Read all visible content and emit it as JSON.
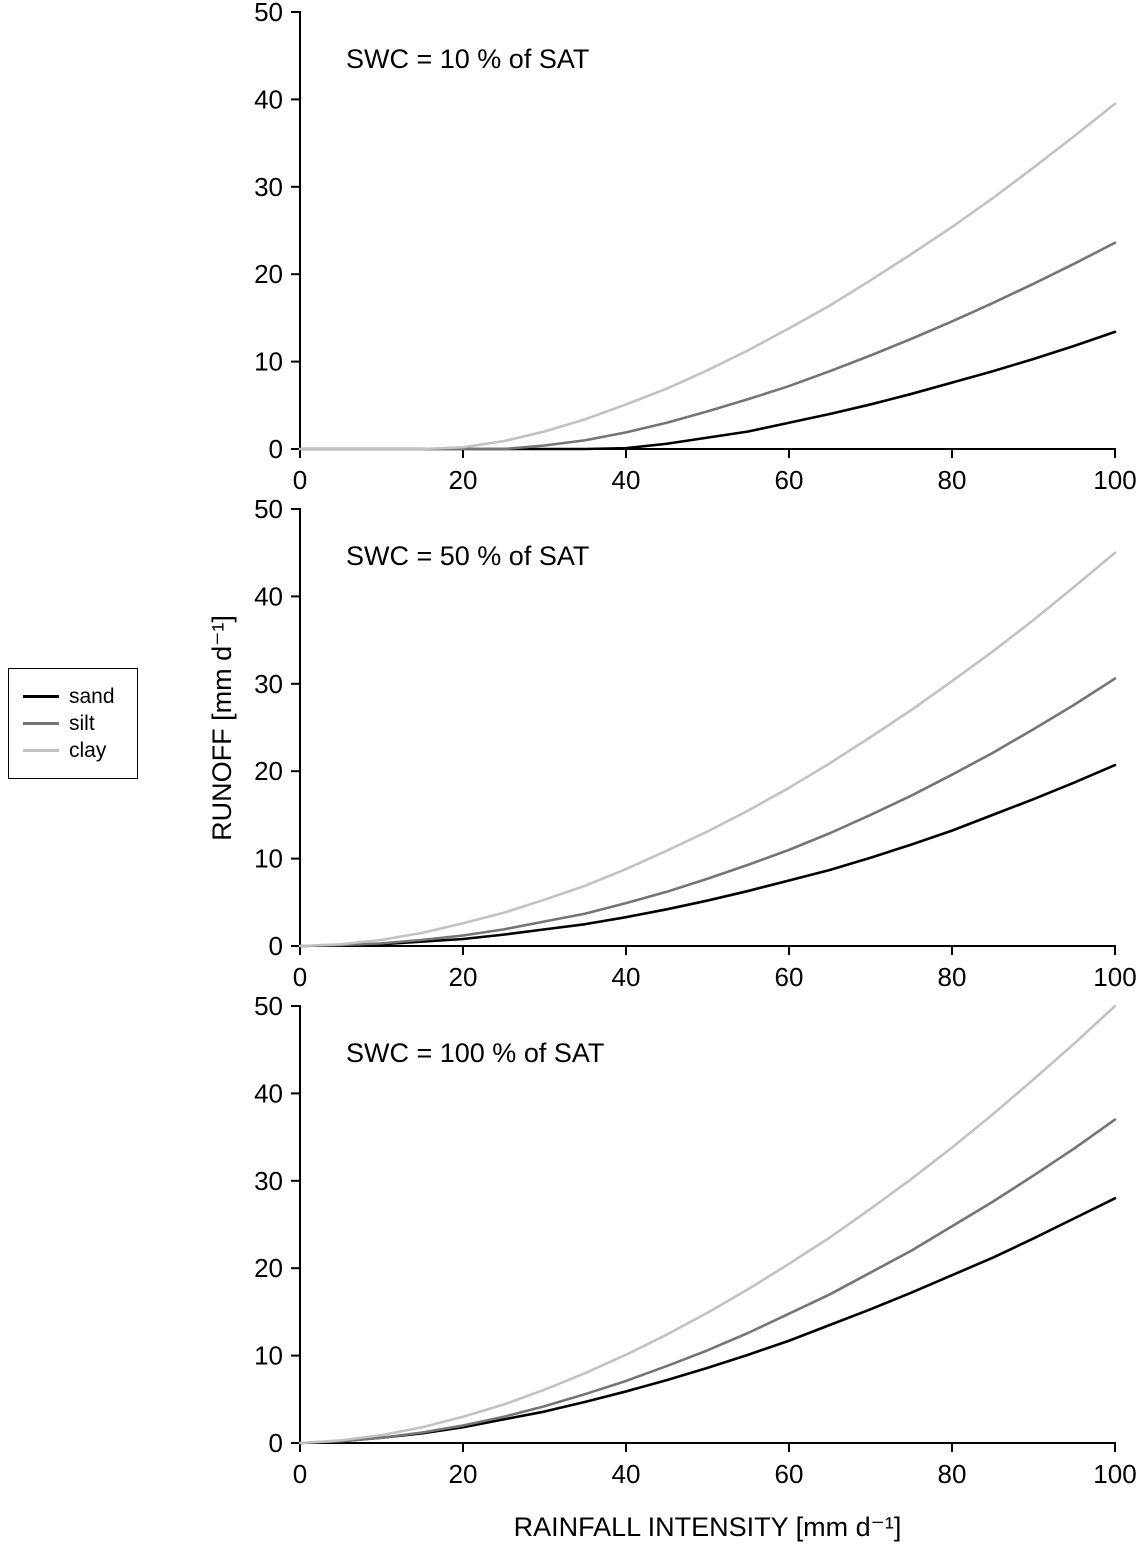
{
  "figure": {
    "x_label": "RAINFALL INTENSITY [mm d⁻¹]",
    "y_label": "RUNOFF [mm d⁻¹]",
    "background": "#ffffff",
    "axis_color": "#000000"
  },
  "legend": {
    "position": "middle-left",
    "items": [
      {
        "label": "sand",
        "color": "#000000"
      },
      {
        "label": "silt",
        "color": "#757575"
      },
      {
        "label": "clay",
        "color": "#c2c2c2"
      }
    ]
  },
  "chart_data": [
    {
      "type": "line",
      "title": "SWC = 10 % of SAT",
      "xlabel": "RAINFALL INTENSITY [mm d⁻¹]",
      "ylabel": "RUNOFF [mm d⁻¹]",
      "xlim": [
        0,
        100
      ],
      "ylim": [
        0,
        50
      ],
      "xticks": [
        0,
        20,
        40,
        60,
        80,
        100
      ],
      "yticks": [
        0,
        10,
        20,
        30,
        40,
        50
      ],
      "grid": false,
      "x": [
        0,
        5,
        10,
        15,
        20,
        25,
        30,
        35,
        40,
        45,
        50,
        55,
        60,
        65,
        70,
        75,
        80,
        85,
        90,
        95,
        100
      ],
      "series": [
        {
          "name": "sand",
          "color": "#000000",
          "values": [
            0,
            0,
            0,
            0,
            0,
            0,
            0,
            0,
            0.1,
            0.6,
            1.3,
            2.0,
            3.0,
            4.0,
            5.1,
            6.3,
            7.6,
            8.9,
            10.3,
            11.8,
            13.4
          ]
        },
        {
          "name": "silt",
          "color": "#757575",
          "values": [
            0,
            0,
            0,
            0,
            0,
            0,
            0.4,
            1.0,
            1.9,
            3.0,
            4.3,
            5.7,
            7.2,
            8.9,
            10.7,
            12.6,
            14.6,
            16.7,
            18.9,
            21.2,
            23.6
          ]
        },
        {
          "name": "clay",
          "color": "#c2c2c2",
          "values": [
            0,
            0,
            0,
            0,
            0.2,
            0.9,
            2.0,
            3.4,
            5.1,
            6.9,
            9.0,
            11.3,
            13.8,
            16.4,
            19.3,
            22.3,
            25.4,
            28.7,
            32.2,
            35.8,
            39.5
          ]
        }
      ]
    },
    {
      "type": "line",
      "title": "SWC = 50 % of SAT",
      "xlabel": "RAINFALL INTENSITY [mm d⁻¹]",
      "ylabel": "RUNOFF [mm d⁻¹]",
      "xlim": [
        0,
        100
      ],
      "ylim": [
        0,
        50
      ],
      "xticks": [
        0,
        20,
        40,
        60,
        80,
        100
      ],
      "yticks": [
        0,
        10,
        20,
        30,
        40,
        50
      ],
      "grid": false,
      "x": [
        0,
        5,
        10,
        15,
        20,
        25,
        30,
        35,
        40,
        45,
        50,
        55,
        60,
        65,
        70,
        75,
        80,
        85,
        90,
        95,
        100
      ],
      "series": [
        {
          "name": "sand",
          "color": "#000000",
          "values": [
            0,
            0.1,
            0.2,
            0.5,
            0.8,
            1.3,
            1.9,
            2.5,
            3.3,
            4.2,
            5.2,
            6.3,
            7.5,
            8.7,
            10.1,
            11.6,
            13.2,
            15.0,
            16.8,
            18.7,
            20.7
          ]
        },
        {
          "name": "silt",
          "color": "#757575",
          "values": [
            0,
            0.1,
            0.3,
            0.7,
            1.2,
            1.9,
            2.8,
            3.7,
            4.9,
            6.2,
            7.7,
            9.3,
            11.0,
            12.9,
            15.0,
            17.2,
            19.6,
            22.1,
            24.8,
            27.6,
            30.6
          ]
        },
        {
          "name": "clay",
          "color": "#c2c2c2",
          "values": [
            0,
            0.2,
            0.7,
            1.5,
            2.6,
            3.8,
            5.3,
            6.9,
            8.8,
            10.9,
            13.1,
            15.5,
            18.1,
            20.9,
            23.9,
            27.0,
            30.3,
            33.7,
            37.3,
            41.1,
            45.0
          ]
        }
      ]
    },
    {
      "type": "line",
      "title": "SWC = 100 % of SAT",
      "xlabel": "RAINFALL INTENSITY [mm d⁻¹]",
      "ylabel": "RUNOFF [mm d⁻¹]",
      "xlim": [
        0,
        100
      ],
      "ylim": [
        0,
        50
      ],
      "xticks": [
        0,
        20,
        40,
        60,
        80,
        100
      ],
      "yticks": [
        0,
        10,
        20,
        30,
        40,
        50
      ],
      "grid": false,
      "x": [
        0,
        5,
        10,
        15,
        20,
        25,
        30,
        35,
        40,
        45,
        50,
        55,
        60,
        65,
        70,
        75,
        80,
        85,
        90,
        95,
        100
      ],
      "series": [
        {
          "name": "sand",
          "color": "#000000",
          "values": [
            0,
            0.2,
            0.6,
            1.1,
            1.8,
            2.7,
            3.6,
            4.7,
            5.9,
            7.2,
            8.6,
            10.1,
            11.7,
            13.5,
            15.3,
            17.2,
            19.2,
            21.2,
            23.4,
            25.7,
            28.0
          ]
        },
        {
          "name": "silt",
          "color": "#757575",
          "values": [
            0,
            0.2,
            0.6,
            1.2,
            2.0,
            3.0,
            4.2,
            5.6,
            7.1,
            8.8,
            10.6,
            12.6,
            14.8,
            17.0,
            19.5,
            22.0,
            24.8,
            27.6,
            30.6,
            33.7,
            37.0
          ]
        },
        {
          "name": "clay",
          "color": "#c2c2c2",
          "values": [
            0,
            0.3,
            0.9,
            1.8,
            3.0,
            4.4,
            6.1,
            8.0,
            10.1,
            12.4,
            14.9,
            17.6,
            20.5,
            23.5,
            26.8,
            30.2,
            33.8,
            37.6,
            41.6,
            45.7,
            50.0
          ]
        }
      ]
    }
  ]
}
